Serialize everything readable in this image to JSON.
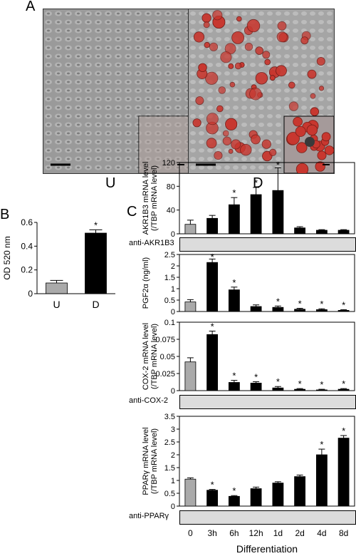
{
  "panel_a": {
    "letter": "A",
    "labels": [
      "U",
      "D"
    ]
  },
  "panel_b": {
    "letter": "B"
  },
  "panel_c": {
    "letter": "C"
  },
  "colors": {
    "control_bar": "#aaaaaa",
    "treated_bar": "#000000",
    "oil_red": "#c8372f"
  },
  "chart_data": [
    {
      "type": "bar",
      "panel": "B",
      "categories": [
        "U",
        "D"
      ],
      "values": [
        0.09,
        0.51
      ],
      "errors": [
        0.022,
        0.028
      ],
      "significant": [
        false,
        true
      ],
      "ylabel": "OD 520 nm",
      "ylim": [
        0,
        0.6
      ],
      "yticks": [
        "0",
        "0.2",
        "0.4",
        "0.6"
      ],
      "grid": false
    },
    {
      "type": "bar",
      "panel": "C1",
      "categories": [
        "0",
        "3h",
        "6h",
        "12h",
        "1d",
        "2d",
        "4d",
        "8d"
      ],
      "values": [
        16,
        26,
        49,
        66,
        73,
        10,
        6,
        6
      ],
      "errors": [
        7,
        5,
        12,
        12,
        38,
        2,
        1,
        1
      ],
      "significant": [
        false,
        false,
        true,
        true,
        true,
        false,
        false,
        false
      ],
      "ylabel": [
        "AKR1B3 mRNA level",
        "(/TBP mRNA level)"
      ],
      "ylim": [
        0,
        120
      ],
      "yticks": [
        "0",
        "40",
        "80",
        "120"
      ],
      "blot_label": "anti-AKR1B3"
    },
    {
      "type": "bar",
      "panel": "C2",
      "categories": [
        "0",
        "3h",
        "6h",
        "12h",
        "1d",
        "2d",
        "4d",
        "8d"
      ],
      "values": [
        0.42,
        2.15,
        0.95,
        0.22,
        0.18,
        0.1,
        0.08,
        0.05
      ],
      "errors": [
        0.1,
        0.15,
        0.12,
        0.07,
        0.06,
        0.04,
        0.04,
        0.03
      ],
      "significant": [
        false,
        true,
        true,
        false,
        true,
        true,
        true,
        true
      ],
      "ylabel": [
        "PGF2α (ng/ml)"
      ],
      "ylim": [
        0,
        2.5
      ],
      "yticks": [
        "0",
        "0.5",
        "1",
        "1.5",
        "2",
        "2.5"
      ]
    },
    {
      "type": "bar",
      "panel": "C3",
      "categories": [
        "0",
        "3h",
        "6h",
        "12h",
        "1d",
        "2d",
        "4d",
        "8d"
      ],
      "values": [
        0.042,
        0.082,
        0.012,
        0.011,
        0.004,
        0.002,
        0.001,
        0.002
      ],
      "errors": [
        0.006,
        0.005,
        0.003,
        0.002,
        0.002,
        0.001,
        0.001,
        0.001
      ],
      "significant": [
        false,
        true,
        true,
        true,
        true,
        true,
        true,
        true
      ],
      "ylabel": [
        "COX-2 mRNA level",
        "(/TBP mRNA level)"
      ],
      "ylim": [
        0,
        0.1
      ],
      "yticks": [
        "0",
        "0.025",
        "0.05",
        "0.075",
        "0.1"
      ],
      "blot_label": "anti-COX-2"
    },
    {
      "type": "bar",
      "panel": "C4",
      "categories": [
        "0",
        "3h",
        "6h",
        "12h",
        "1d",
        "2d",
        "4d",
        "8d"
      ],
      "values": [
        1.05,
        0.62,
        0.38,
        0.68,
        0.9,
        1.15,
        2.0,
        2.65
      ],
      "errors": [
        0.05,
        0.03,
        0.03,
        0.06,
        0.05,
        0.06,
        0.22,
        0.1
      ],
      "significant": [
        false,
        true,
        true,
        false,
        false,
        false,
        true,
        true
      ],
      "ylabel": [
        "PPARγ mRNA level",
        "(/TBP mRNA level)"
      ],
      "ylim": [
        0,
        3.5
      ],
      "yticks": [
        "0",
        "0.5",
        "1",
        "1.5",
        "2",
        "2.5",
        "3",
        "3.5"
      ],
      "blot_label": "anti-PPARγ",
      "xlabel": "Differentiation"
    }
  ]
}
